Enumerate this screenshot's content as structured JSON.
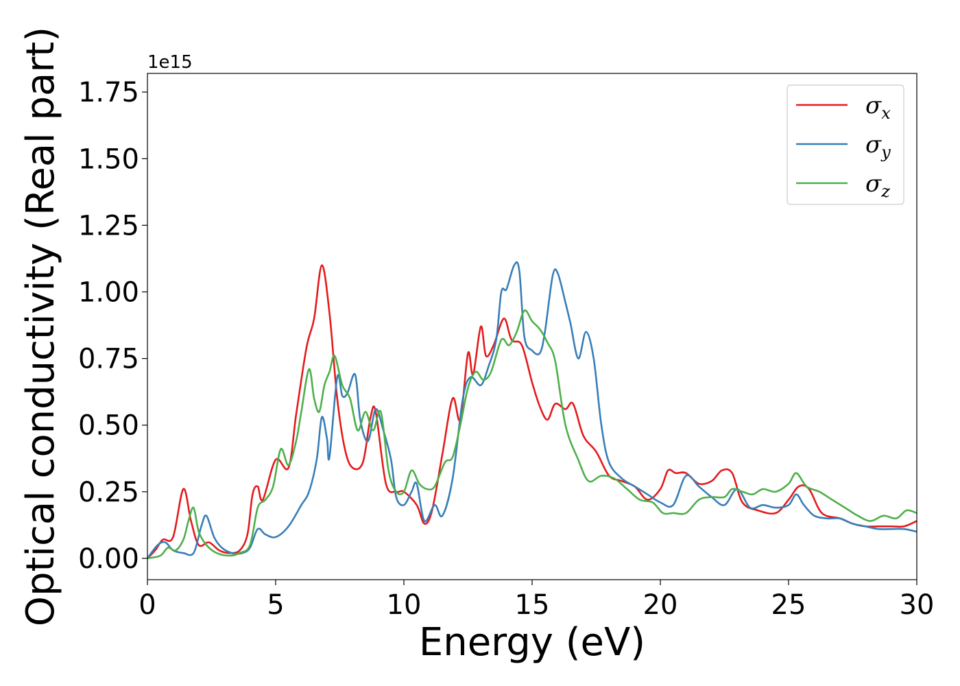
{
  "chart_data": {
    "type": "line",
    "xlabel": "Energy (eV)",
    "ylabel": "Optical conductivity (Real part)",
    "y_offset_label": "1e15",
    "xlim": [
      0,
      30
    ],
    "ylim": [
      -0.08,
      1.82
    ],
    "x_ticks": [
      0,
      5,
      10,
      15,
      20,
      25,
      30
    ],
    "x_tick_labels": [
      "0",
      "5",
      "10",
      "15",
      "20",
      "25",
      "30"
    ],
    "y_ticks": [
      0.0,
      0.25,
      0.5,
      0.75,
      1.0,
      1.25,
      1.5,
      1.75
    ],
    "y_tick_labels": [
      "0.00",
      "0.25",
      "0.50",
      "0.75",
      "1.00",
      "1.25",
      "1.50",
      "1.75"
    ],
    "grid": false,
    "legend_position": "top-right",
    "series": [
      {
        "name": "σx",
        "legend_symbol": "σ",
        "legend_subscript": "x",
        "color": "#e41a1c",
        "x": [
          0,
          0.3,
          0.6,
          1.0,
          1.4,
          1.7,
          2.0,
          2.4,
          2.8,
          3.2,
          3.6,
          3.9,
          4.1,
          4.3,
          4.5,
          5.0,
          5.5,
          5.8,
          6.2,
          6.5,
          6.8,
          7.1,
          7.4,
          7.7,
          8.0,
          8.4,
          8.7,
          8.9,
          9.3,
          9.7,
          10.0,
          10.5,
          10.8,
          11.1,
          11.5,
          11.9,
          12.2,
          12.5,
          12.7,
          13.0,
          13.2,
          13.5,
          13.9,
          14.2,
          14.6,
          15.0,
          15.3,
          15.6,
          15.9,
          16.3,
          16.6,
          17.0,
          17.5,
          18.0,
          18.5,
          19.0,
          19.5,
          20.0,
          20.3,
          20.6,
          21.0,
          21.5,
          22.0,
          22.4,
          22.8,
          23.2,
          23.8,
          24.5,
          25.0,
          25.4,
          25.8,
          26.3,
          27.0,
          27.5,
          28.0,
          28.5,
          29.0,
          29.5,
          30.0
        ],
        "values": [
          0.0,
          0.03,
          0.07,
          0.08,
          0.26,
          0.14,
          0.05,
          0.06,
          0.03,
          0.02,
          0.03,
          0.09,
          0.24,
          0.27,
          0.22,
          0.37,
          0.34,
          0.54,
          0.79,
          0.9,
          1.1,
          0.92,
          0.6,
          0.41,
          0.34,
          0.36,
          0.53,
          0.55,
          0.28,
          0.25,
          0.25,
          0.2,
          0.13,
          0.18,
          0.39,
          0.6,
          0.52,
          0.77,
          0.69,
          0.87,
          0.76,
          0.8,
          0.9,
          0.82,
          0.8,
          0.66,
          0.57,
          0.52,
          0.58,
          0.56,
          0.58,
          0.46,
          0.4,
          0.31,
          0.29,
          0.27,
          0.22,
          0.26,
          0.33,
          0.32,
          0.32,
          0.28,
          0.29,
          0.33,
          0.32,
          0.21,
          0.18,
          0.17,
          0.22,
          0.27,
          0.26,
          0.17,
          0.15,
          0.13,
          0.12,
          0.12,
          0.12,
          0.12,
          0.14
        ]
      },
      {
        "name": "σy",
        "legend_symbol": "σ",
        "legend_subscript": "y",
        "color": "#377eb8",
        "x": [
          0,
          0.4,
          0.7,
          1.0,
          1.4,
          1.8,
          2.1,
          2.3,
          2.6,
          2.9,
          3.3,
          3.7,
          4.0,
          4.3,
          4.6,
          5.0,
          5.5,
          6.0,
          6.3,
          6.6,
          6.8,
          7.0,
          7.1,
          7.4,
          7.6,
          7.8,
          8.1,
          8.3,
          8.6,
          8.9,
          9.2,
          9.5,
          9.7,
          10.0,
          10.3,
          10.5,
          10.8,
          11.2,
          11.5,
          11.9,
          12.3,
          12.6,
          13.0,
          13.3,
          13.6,
          13.8,
          14.0,
          14.3,
          14.5,
          14.7,
          15.0,
          15.3,
          15.5,
          15.8,
          16.0,
          16.3,
          16.5,
          16.8,
          17.1,
          17.4,
          17.7,
          18.0,
          18.5,
          19.0,
          19.5,
          20.0,
          20.5,
          21.0,
          21.5,
          22.0,
          22.5,
          23.0,
          23.5,
          24.0,
          24.5,
          25.0,
          25.3,
          25.6,
          26.0,
          26.5,
          27.0,
          27.5,
          28.0,
          28.5,
          29.0,
          29.5,
          30.0
        ],
        "values": [
          0.0,
          0.05,
          0.06,
          0.03,
          0.02,
          0.02,
          0.12,
          0.16,
          0.08,
          0.04,
          0.02,
          0.02,
          0.04,
          0.11,
          0.09,
          0.08,
          0.12,
          0.2,
          0.25,
          0.37,
          0.53,
          0.45,
          0.38,
          0.68,
          0.61,
          0.62,
          0.69,
          0.52,
          0.44,
          0.56,
          0.48,
          0.37,
          0.23,
          0.2,
          0.25,
          0.28,
          0.14,
          0.2,
          0.16,
          0.3,
          0.6,
          0.68,
          0.65,
          0.72,
          0.82,
          1.0,
          1.01,
          1.1,
          1.08,
          0.83,
          0.78,
          0.77,
          0.85,
          1.06,
          1.07,
          0.96,
          0.88,
          0.75,
          0.85,
          0.75,
          0.5,
          0.36,
          0.3,
          0.27,
          0.24,
          0.21,
          0.2,
          0.31,
          0.27,
          0.23,
          0.2,
          0.26,
          0.19,
          0.2,
          0.19,
          0.2,
          0.24,
          0.2,
          0.16,
          0.15,
          0.15,
          0.13,
          0.12,
          0.11,
          0.11,
          0.11,
          0.1
        ]
      },
      {
        "name": "σz",
        "legend_symbol": "σ",
        "legend_subscript": "z",
        "color": "#4daf4a",
        "x": [
          0,
          0.5,
          0.8,
          1.1,
          1.4,
          1.6,
          1.8,
          2.0,
          2.3,
          2.7,
          3.2,
          3.6,
          4.0,
          4.3,
          4.6,
          4.9,
          5.2,
          5.5,
          5.8,
          6.0,
          6.3,
          6.5,
          6.7,
          6.9,
          7.1,
          7.3,
          7.6,
          7.9,
          8.2,
          8.5,
          8.8,
          9.1,
          9.4,
          9.7,
          10.0,
          10.3,
          10.6,
          10.9,
          11.2,
          11.6,
          11.9,
          12.2,
          12.5,
          12.8,
          13.1,
          13.4,
          13.8,
          14.1,
          14.4,
          14.7,
          15.0,
          15.3,
          15.6,
          15.9,
          16.3,
          16.8,
          17.2,
          17.7,
          18.2,
          18.7,
          19.2,
          19.7,
          20.1,
          20.5,
          21.0,
          21.5,
          22.0,
          22.5,
          22.8,
          23.2,
          23.6,
          24.0,
          24.5,
          25.0,
          25.3,
          25.7,
          26.2,
          26.7,
          27.2,
          27.7,
          28.2,
          28.7,
          29.2,
          29.6,
          30.0
        ],
        "values": [
          0.0,
          0.01,
          0.04,
          0.03,
          0.07,
          0.14,
          0.19,
          0.1,
          0.05,
          0.02,
          0.01,
          0.02,
          0.05,
          0.19,
          0.22,
          0.27,
          0.41,
          0.35,
          0.44,
          0.55,
          0.71,
          0.6,
          0.55,
          0.65,
          0.7,
          0.76,
          0.65,
          0.6,
          0.48,
          0.55,
          0.48,
          0.55,
          0.33,
          0.25,
          0.25,
          0.33,
          0.28,
          0.26,
          0.27,
          0.36,
          0.38,
          0.5,
          0.64,
          0.7,
          0.67,
          0.7,
          0.82,
          0.8,
          0.85,
          0.93,
          0.89,
          0.86,
          0.81,
          0.74,
          0.5,
          0.37,
          0.29,
          0.31,
          0.3,
          0.26,
          0.22,
          0.21,
          0.17,
          0.17,
          0.17,
          0.22,
          0.23,
          0.23,
          0.26,
          0.25,
          0.24,
          0.26,
          0.25,
          0.28,
          0.32,
          0.27,
          0.25,
          0.22,
          0.19,
          0.16,
          0.14,
          0.16,
          0.15,
          0.18,
          0.17
        ]
      }
    ]
  }
}
